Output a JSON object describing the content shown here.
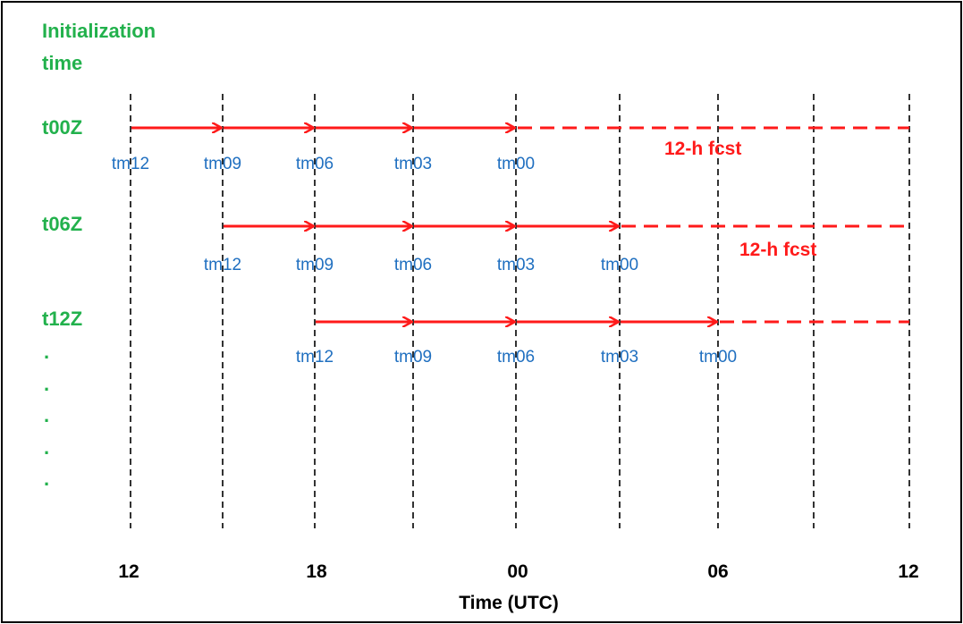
{
  "header": {
    "line1": "Initialization",
    "line2": "time"
  },
  "rows": [
    {
      "label": "t00Z",
      "stages": [
        "tm12",
        "tm09",
        "tm06",
        "tm03",
        "tm00"
      ],
      "fcst_label": "12-h fcst"
    },
    {
      "label": "t06Z",
      "stages": [
        "tm12",
        "tm09",
        "tm06",
        "tm03",
        "tm00"
      ],
      "fcst_label": "12-h fcst"
    },
    {
      "label": "t12Z",
      "stages": [
        "tm12",
        "tm09",
        "tm06",
        "tm03",
        "tm00"
      ],
      "fcst_label": ""
    }
  ],
  "continuation": [
    ".",
    ".",
    ".",
    ".",
    "."
  ],
  "axis": {
    "ticks": [
      "12",
      "18",
      "00",
      "06",
      "12"
    ],
    "label": "Time (UTC)"
  },
  "colors": {
    "init_label": "#22b14c",
    "stage_label": "#1f6fc0",
    "arrow": "#ff1a1a",
    "gridline": "#000000"
  }
}
